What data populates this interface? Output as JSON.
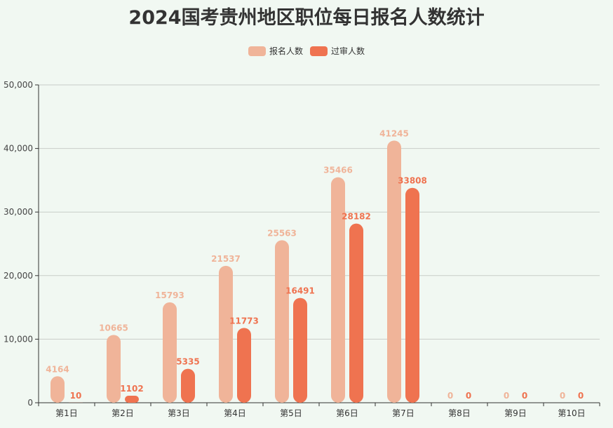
{
  "chart_data": {
    "type": "bar",
    "title": "2024国考贵州地区职位每日报名人数统计",
    "categories": [
      "第1日",
      "第2日",
      "第3日",
      "第4日",
      "第5日",
      "第6日",
      "第7日",
      "第8日",
      "第9日",
      "第10日"
    ],
    "series": [
      {
        "name": "报名人数",
        "color": "#f0b499",
        "values": [
          4164,
          10665,
          15793,
          21537,
          25563,
          35466,
          41245,
          0,
          0,
          0
        ]
      },
      {
        "name": "过审人数",
        "color": "#ef7350",
        "values": [
          10,
          1102,
          5335,
          11773,
          16491,
          28182,
          33808,
          0,
          0,
          0
        ]
      }
    ],
    "xlabel": "",
    "ylabel": "",
    "ylim": [
      0,
      50000
    ],
    "yticks": [
      "0",
      "10,000",
      "20,000",
      "30,000",
      "40,000",
      "50,000"
    ],
    "grid": true,
    "legend_position": "top"
  },
  "title": "2024国考贵州地区职位每日报名人数统计",
  "legend": [
    {
      "label": "报名人数",
      "color": "#f0b499"
    },
    {
      "label": "过审人数",
      "color": "#ef7350"
    }
  ]
}
